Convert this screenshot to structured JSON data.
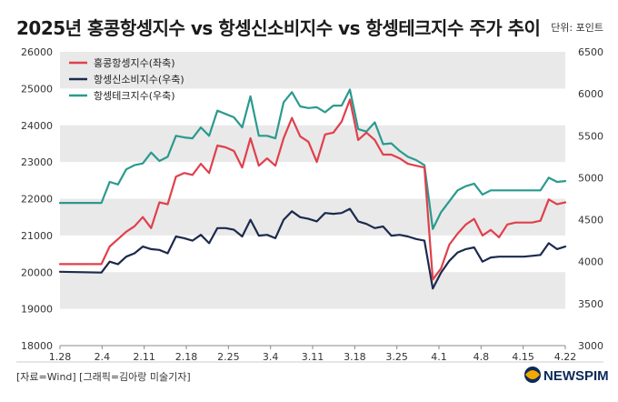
{
  "title": "2025년 홍콩항셍지수 vs 항셍신소비지수 vs 항셍테크지수 주가 추이",
  "unit_label": "단위: 포인트",
  "source_label": "[자료=Wind] [그래픽=김아랑 미술기자]",
  "logo_text": "NEWSPIM",
  "chart_data": {
    "type": "line",
    "left_axis": {
      "ticks": [
        18000,
        19000,
        20000,
        21000,
        22000,
        23000,
        24000,
        25000,
        26000
      ],
      "ylim": [
        18000,
        26000
      ]
    },
    "right_axis": {
      "ticks": [
        3000,
        3500,
        4000,
        4500,
        5000,
        5500,
        6000,
        6500
      ],
      "ylim": [
        3000,
        6500
      ]
    },
    "x_ticks": [
      "1.28",
      "2.4",
      "2.11",
      "2.18",
      "2.25",
      "3.4",
      "3.11",
      "3.18",
      "3.25",
      "4.1",
      "4.8",
      "4.15",
      "4.22"
    ],
    "x_range": [
      0,
      61
    ],
    "grid": "alternating horizontal bands",
    "legend_position": "top-left",
    "series": [
      {
        "name": "홍콩항셍지수(좌축)",
        "axis": "left",
        "color": "#e0404c",
        "x": [
          0,
          5,
          6,
          7,
          8,
          9,
          10,
          11,
          12,
          13,
          14,
          15,
          16,
          17,
          18,
          19,
          20,
          21,
          22,
          23,
          24,
          25,
          26,
          27,
          28,
          29,
          30,
          31,
          32,
          33,
          34,
          35,
          36,
          37,
          38,
          39,
          40,
          41,
          42,
          43,
          44,
          45,
          46,
          47,
          48,
          49,
          50,
          51,
          52,
          53,
          54,
          55,
          56,
          57,
          58,
          59,
          60,
          61
        ],
        "values": [
          20220,
          20220,
          20700,
          20900,
          21100,
          21250,
          21500,
          21200,
          21900,
          21850,
          22600,
          22700,
          22650,
          22950,
          22700,
          23450,
          23400,
          23300,
          22850,
          23650,
          22900,
          23100,
          22900,
          23650,
          24200,
          23700,
          23550,
          23000,
          23750,
          23800,
          24100,
          24700,
          23600,
          23800,
          23600,
          23200,
          23200,
          23100,
          22950,
          22900,
          22850,
          19800,
          20100,
          20750,
          21050,
          21300,
          21450,
          21000,
          21150,
          20950,
          21300,
          21350,
          21350,
          21350,
          21400,
          21980,
          21850,
          21900
        ]
      },
      {
        "name": "항셍신소비지수(우축)",
        "axis": "right",
        "color": "#1c2a4e",
        "x": [
          0,
          5,
          6,
          7,
          8,
          9,
          10,
          11,
          12,
          13,
          14,
          15,
          16,
          17,
          18,
          19,
          20,
          21,
          22,
          23,
          24,
          25,
          26,
          27,
          28,
          29,
          30,
          31,
          32,
          33,
          34,
          35,
          36,
          37,
          38,
          39,
          40,
          41,
          42,
          43,
          44,
          45,
          46,
          47,
          48,
          49,
          50,
          51,
          52,
          53,
          54,
          55,
          56,
          57,
          58,
          59,
          60,
          61
        ],
        "values": [
          3880,
          3870,
          4000,
          3970,
          4060,
          4100,
          4180,
          4150,
          4140,
          4100,
          4300,
          4280,
          4250,
          4320,
          4220,
          4400,
          4400,
          4380,
          4300,
          4500,
          4310,
          4320,
          4280,
          4500,
          4600,
          4530,
          4510,
          4480,
          4580,
          4570,
          4580,
          4630,
          4480,
          4450,
          4400,
          4420,
          4310,
          4320,
          4300,
          4270,
          4250,
          3680,
          3870,
          4010,
          4110,
          4150,
          4170,
          4000,
          4050,
          4060,
          4060,
          4060,
          4060,
          4070,
          4080,
          4220,
          4150,
          4180
        ]
      },
      {
        "name": "항셍테크지수(우축)",
        "axis": "right",
        "color": "#2a9a8e",
        "x": [
          0,
          5,
          6,
          7,
          8,
          9,
          10,
          11,
          12,
          13,
          14,
          15,
          16,
          17,
          18,
          19,
          20,
          21,
          22,
          23,
          24,
          25,
          26,
          27,
          28,
          29,
          30,
          31,
          32,
          33,
          34,
          35,
          36,
          37,
          38,
          39,
          40,
          41,
          42,
          43,
          44,
          45,
          46,
          47,
          48,
          49,
          50,
          51,
          52,
          53,
          54,
          55,
          56,
          57,
          58,
          59,
          60,
          61
        ],
        "values": [
          4700,
          4700,
          4950,
          4920,
          5100,
          5150,
          5170,
          5300,
          5200,
          5250,
          5500,
          5480,
          5470,
          5600,
          5500,
          5800,
          5760,
          5720,
          5600,
          5970,
          5500,
          5500,
          5470,
          5900,
          6020,
          5850,
          5830,
          5840,
          5780,
          5860,
          5860,
          6050,
          5580,
          5550,
          5660,
          5400,
          5410,
          5320,
          5250,
          5210,
          5150,
          4390,
          4590,
          4720,
          4850,
          4900,
          4930,
          4800,
          4850,
          4850,
          4850,
          4850,
          4850,
          4850,
          4850,
          5000,
          4950,
          4960
        ]
      }
    ]
  }
}
